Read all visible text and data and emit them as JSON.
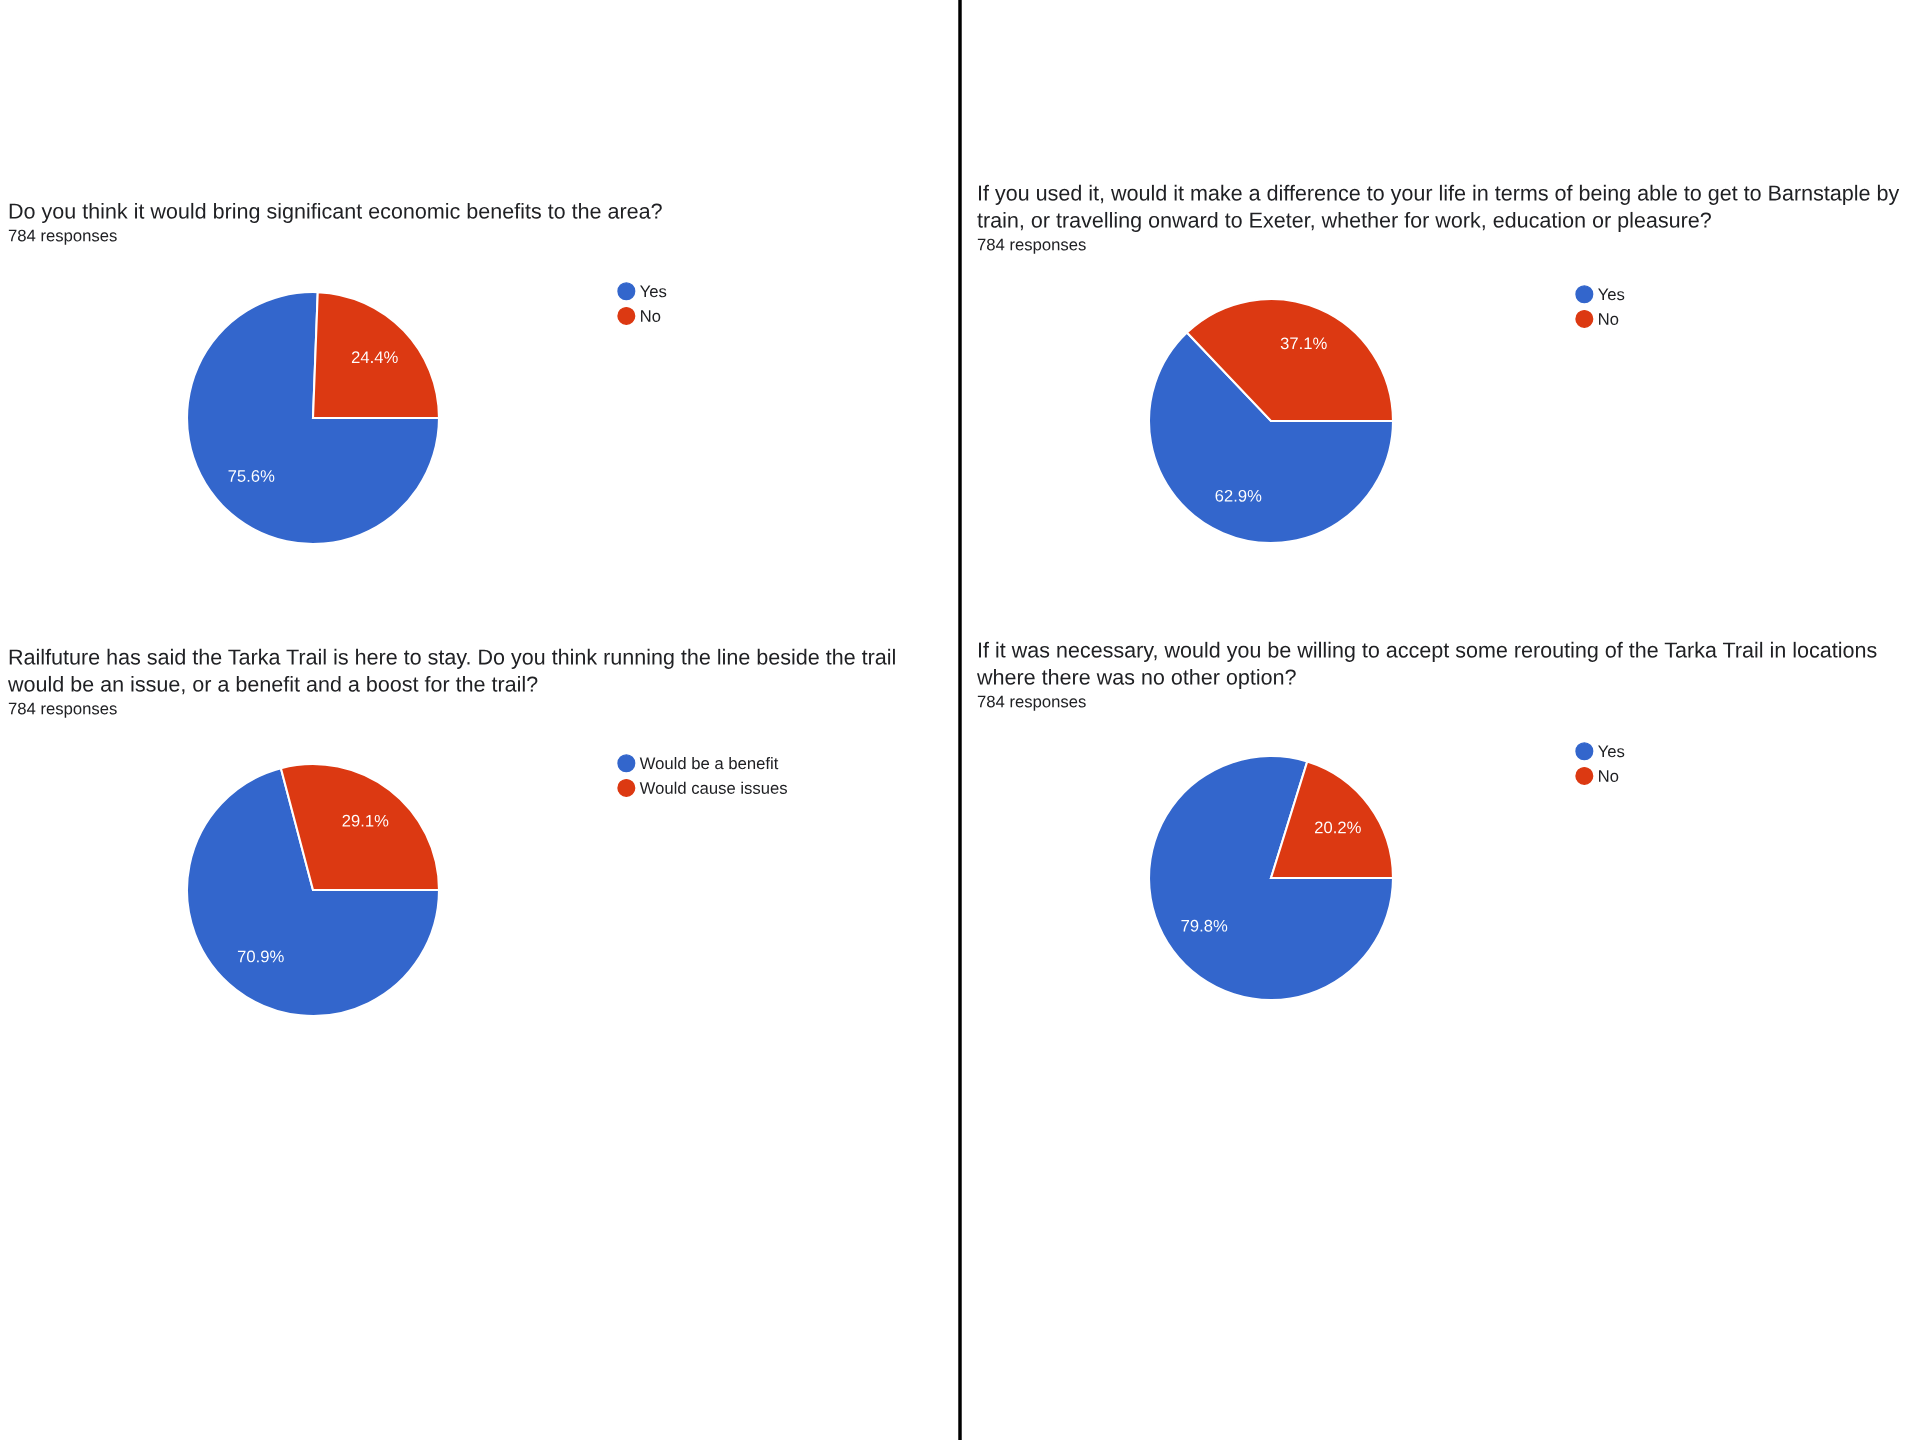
{
  "chart_data": [
    {
      "type": "pie",
      "title": "Do you think it would bring significant economic benefits to the area?",
      "subtitle": "784 responses",
      "categories": [
        "Yes",
        "No"
      ],
      "values": [
        75.6,
        24.4
      ],
      "colors": [
        "#3366cc",
        "#dc3912"
      ],
      "value_labels": [
        "75.6%",
        "24.4%"
      ],
      "legend": "right"
    },
    {
      "type": "pie",
      "title": "If you used it, would it make a difference to your life in terms of being able to get to Barnstaple by train, or travelling onward to Exeter, whether for work, education or pleasure?",
      "subtitle": "784 responses",
      "categories": [
        "Yes",
        "No"
      ],
      "values": [
        62.9,
        37.1
      ],
      "colors": [
        "#3366cc",
        "#dc3912"
      ],
      "value_labels": [
        "62.9%",
        "37.1%"
      ],
      "legend": "right"
    },
    {
      "type": "pie",
      "title": "Railfuture has said the Tarka Trail is here to stay. Do you think running the line beside the trail would be an issue, or a benefit and a boost for the trail?",
      "subtitle": "784 responses",
      "categories": [
        "Would be a benefit",
        "Would cause issues"
      ],
      "values": [
        70.9,
        29.1
      ],
      "colors": [
        "#3366cc",
        "#dc3912"
      ],
      "value_labels": [
        "70.9%",
        "29.1%"
      ],
      "legend": "right"
    },
    {
      "type": "pie",
      "title": "If it was necessary, would you be willing to accept some rerouting of the Tarka Trail in locations where there was no other option?",
      "subtitle": "784 responses",
      "categories": [
        "Yes",
        "No"
      ],
      "values": [
        79.8,
        20.2
      ],
      "colors": [
        "#3366cc",
        "#dc3912"
      ],
      "value_labels": [
        "79.8%",
        "20.2%"
      ],
      "legend": "right"
    }
  ]
}
